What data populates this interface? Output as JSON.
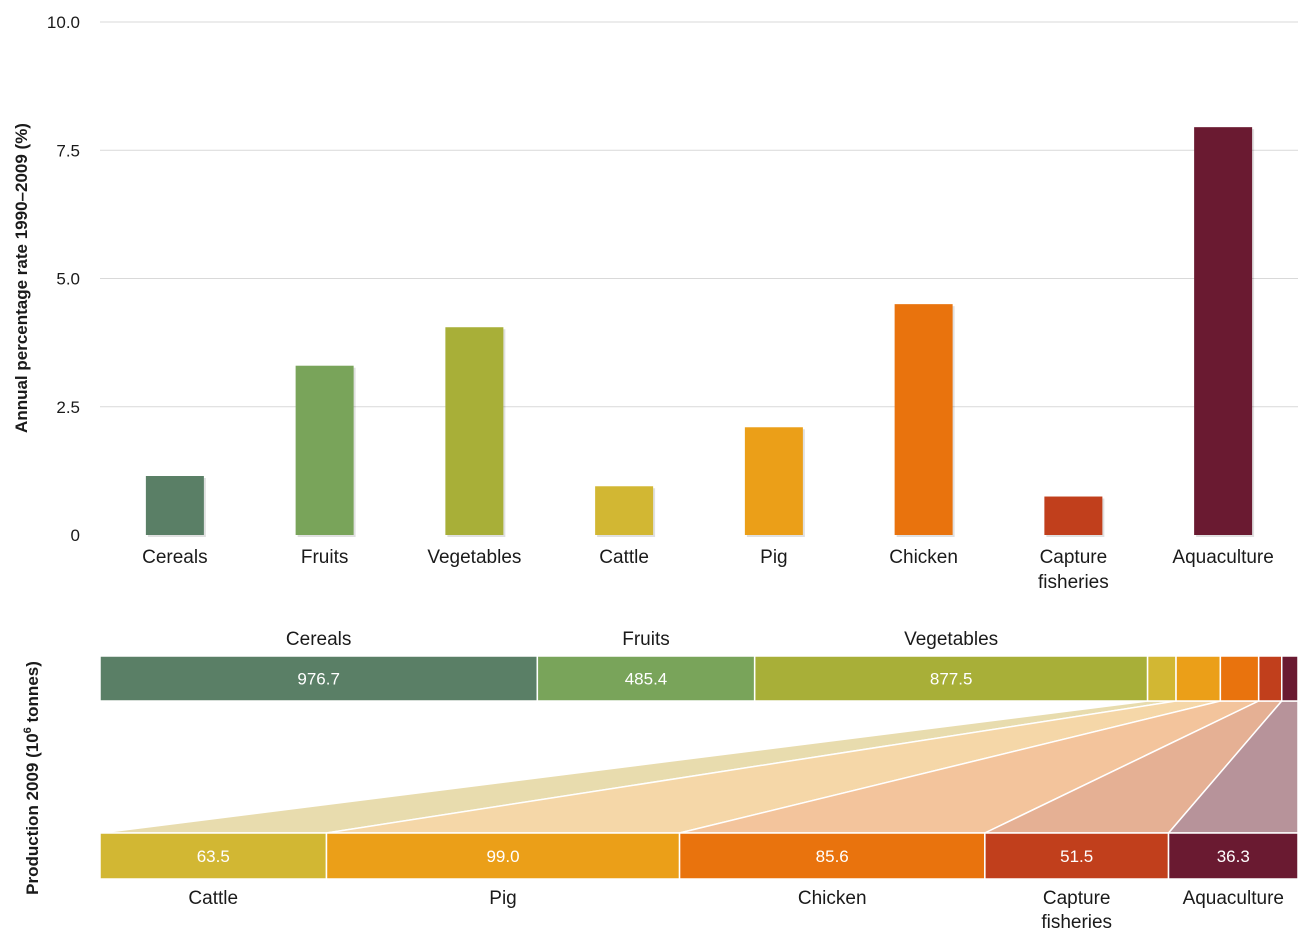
{
  "chart_data": [
    {
      "type": "bar",
      "ylabel": "Annual percentage rate 1990–2009 (%)",
      "ylim": [
        0,
        10
      ],
      "yticks": [
        "0",
        "2.5",
        "5.0",
        "7.5",
        "10.0"
      ],
      "grid": true,
      "categories": [
        {
          "label": "Cereals",
          "lines": [
            "Cereals"
          ]
        },
        {
          "label": "Fruits",
          "lines": [
            "Fruits"
          ]
        },
        {
          "label": "Vegetables",
          "lines": [
            "Vegetables"
          ]
        },
        {
          "label": "Cattle",
          "lines": [
            "Cattle"
          ]
        },
        {
          "label": "Pig",
          "lines": [
            "Pig"
          ]
        },
        {
          "label": "Chicken",
          "lines": [
            "Chicken"
          ]
        },
        {
          "label": "Capture fisheries",
          "lines": [
            "Capture",
            "fisheries"
          ]
        },
        {
          "label": "Aquaculture",
          "lines": [
            "Aquaculture"
          ]
        }
      ],
      "values": [
        1.15,
        3.3,
        4.05,
        0.95,
        2.1,
        4.5,
        0.75,
        7.95
      ],
      "colors": [
        "#5a7f66",
        "#79a45a",
        "#a8af38",
        "#d2b733",
        "#eb9f18",
        "#e9730d",
        "#c13f1c",
        "#6a1a31"
      ]
    },
    {
      "type": "bar",
      "subtype": "stacked-horizontal",
      "ylabel_main": "Production 2009 (10",
      "ylabel_sup": "6",
      "ylabel_tail": " tonnes)",
      "segments": [
        {
          "label": "Cereals",
          "value": 976.7,
          "display": "976.7",
          "color": "#5a7f66"
        },
        {
          "label": "Fruits",
          "value": 485.4,
          "display": "485.4",
          "color": "#79a45a"
        },
        {
          "label": "Vegetables",
          "value": 877.5,
          "display": "877.5",
          "color": "#a8af38"
        },
        {
          "label": "Cattle",
          "value": 63.5,
          "display": "",
          "color": "#d2b733"
        },
        {
          "label": "Pig",
          "value": 99.0,
          "display": "",
          "color": "#eb9f18"
        },
        {
          "label": "Chicken",
          "value": 85.6,
          "display": "",
          "color": "#e9730d"
        },
        {
          "label": "Capture fisheries",
          "value": 51.5,
          "display": "",
          "color": "#c13f1c"
        },
        {
          "label": "Aquaculture",
          "value": 36.3,
          "display": "",
          "color": "#6a1a31"
        }
      ],
      "top_labels": [
        "Cereals",
        "Fruits",
        "Vegetables"
      ]
    },
    {
      "type": "bar",
      "subtype": "stacked-horizontal-detail",
      "segments": [
        {
          "label": "Cattle",
          "lines": [
            "Cattle"
          ],
          "value": 63.5,
          "display": "63.5",
          "color": "#d2b733",
          "fan": "#e8dcae"
        },
        {
          "label": "Pig",
          "lines": [
            "Pig"
          ],
          "value": 99.0,
          "display": "99.0",
          "color": "#eb9f18",
          "fan": "#f5d7a8"
        },
        {
          "label": "Chicken",
          "lines": [
            "Chicken"
          ],
          "value": 85.6,
          "display": "85.6",
          "color": "#e9730d",
          "fan": "#f3c49c"
        },
        {
          "label": "Capture fisheries",
          "lines": [
            "Capture",
            "fisheries"
          ],
          "value": 51.5,
          "display": "51.5",
          "color": "#c13f1c",
          "fan": "#e5b094"
        },
        {
          "label": "Aquaculture",
          "lines": [
            "Aquaculture"
          ],
          "value": 36.3,
          "display": "36.3",
          "color": "#6a1a31",
          "fan": "#b7939a"
        }
      ]
    }
  ]
}
